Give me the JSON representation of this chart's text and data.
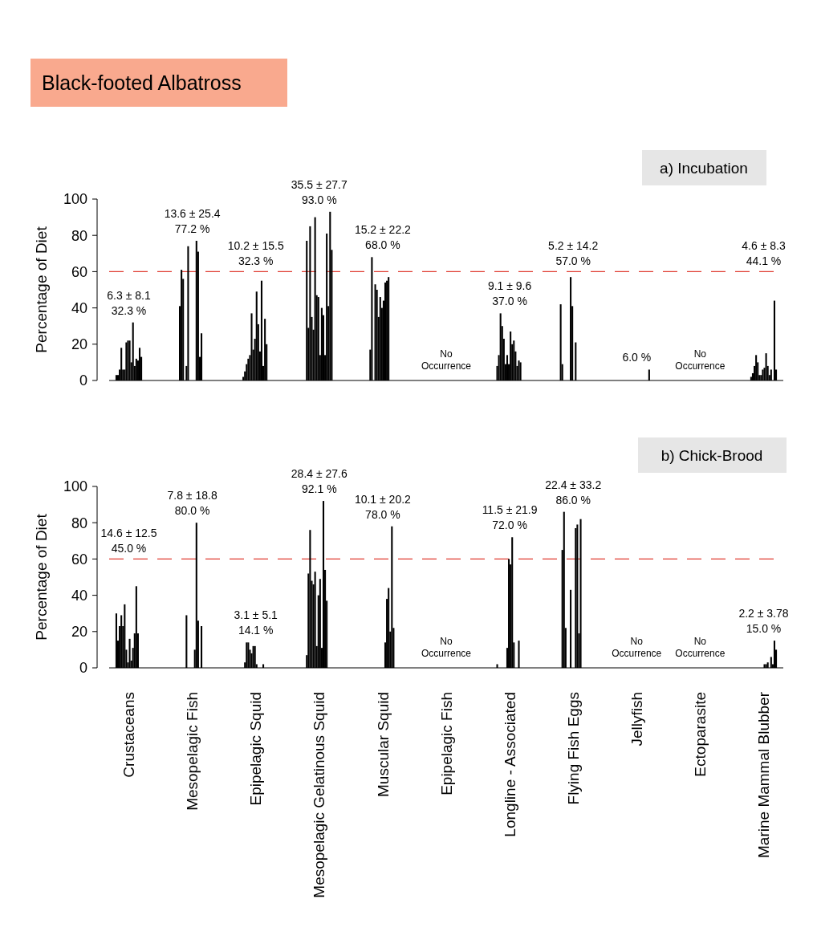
{
  "chart_data": [
    {
      "type": "bar",
      "title": "Black-footed Albatross",
      "subtitle": "a) Incubation",
      "ylabel": "Percentage of Diet",
      "categories": [
        null,
        null,
        null,
        null,
        null,
        null,
        null,
        null,
        null,
        null,
        null
      ],
      "ylim": [
        0,
        100
      ],
      "yticks": [
        0,
        20,
        40,
        60,
        80,
        100
      ],
      "tick_labels": "y",
      "ref_lines": [
        {
          "axis": "y",
          "value": 60,
          "color": "#e03c31",
          "line_style": "dashed"
        }
      ],
      "annotations": [
        "6.3 ± 8.1\n32.3 %",
        "13.6 ± 25.4\n77.2 %",
        "10.2 ± 15.5\n32.3 %",
        "35.5 ± 27.7\n93.0 %",
        "15.2 ± 22.2\n68.0 %",
        "No\nOccurrence",
        "9.1 ± 9.6\n37.0 %",
        "5.2 ± 14.2\n57.0 %",
        "6.0 %",
        "No\nOccurrence",
        "4.6 ± 8.3\n44.1 %"
      ],
      "series": [
        {
          "color": "#000000",
          "values": [
            3,
            41,
            2,
            77,
            17,
            0,
            8,
            42,
            0,
            0,
            2
          ]
        },
        {
          "color": "#000000",
          "values": [
            3,
            61,
            5,
            29,
            68,
            0,
            14,
            9,
            0,
            0,
            4
          ]
        },
        {
          "color": "#000000",
          "values": [
            6,
            56,
            9,
            85,
            0,
            0,
            37,
            0,
            0,
            0,
            8
          ]
        },
        {
          "color": "#000000",
          "values": [
            18,
            0,
            12,
            35,
            53,
            0,
            30,
            0,
            0,
            0,
            14
          ]
        },
        {
          "color": "#000000",
          "values": [
            6,
            8,
            14,
            28,
            50,
            0,
            23,
            0,
            0,
            0,
            10
          ]
        },
        {
          "color": "#000000",
          "values": [
            6,
            74,
            37,
            90,
            35,
            0,
            9,
            0,
            0,
            0,
            3
          ]
        },
        {
          "color": "#000000",
          "values": [
            21,
            0,
            17,
            47,
            46,
            0,
            14,
            57,
            0,
            0,
            3
          ]
        },
        {
          "color": "#000000",
          "values": [
            22,
            0,
            23,
            46,
            40,
            0,
            9,
            41,
            0,
            0,
            6
          ]
        },
        {
          "color": "#000000",
          "values": [
            22,
            0,
            49,
            14,
            44,
            0,
            27,
            0,
            0,
            0,
            7
          ]
        },
        {
          "color": "#000000",
          "values": [
            10,
            0,
            31,
            40,
            54,
            0,
            20,
            21,
            0,
            0,
            15
          ]
        },
        {
          "color": "#000000",
          "values": [
            32,
            77,
            16,
            36,
            55,
            0,
            22,
            0,
            0,
            0,
            8
          ]
        },
        {
          "color": "#000000",
          "values": [
            8,
            71,
            55,
            14,
            57,
            0,
            16,
            0,
            0,
            0,
            3
          ]
        },
        {
          "color": "#000000",
          "values": [
            12,
            13,
            8,
            81,
            0,
            0,
            8,
            0,
            0,
            0,
            6
          ]
        },
        {
          "color": "#000000",
          "values": [
            11,
            26,
            34,
            41,
            0,
            0,
            11,
            0,
            0,
            0,
            0
          ]
        },
        {
          "color": "#000000",
          "values": [
            18,
            0,
            20,
            93,
            0,
            0,
            10,
            0,
            0,
            0,
            44
          ]
        },
        {
          "color": "#000000",
          "values": [
            13,
            0,
            0,
            72,
            0,
            0,
            0,
            0,
            6,
            0,
            6
          ]
        }
      ]
    },
    {
      "type": "bar",
      "subtitle": "b) Chick-Brood",
      "ylabel": "Percentage of Diet",
      "categories": [
        "Crustaceans",
        "Mesopelagic Fish",
        "Epipelagic Squid",
        "Mesopelagic Gelatinous Squid",
        "Muscular Squid",
        "Epipelagic Fish",
        "Longline - Associated",
        "Flying Fish Eggs",
        "Jellyfish",
        "Ectoparasite",
        "Marine Mammal Blubber"
      ],
      "ylim": [
        0,
        100
      ],
      "yticks": [
        0,
        20,
        40,
        60,
        80,
        100
      ],
      "ref_lines": [
        {
          "axis": "y",
          "value": 60,
          "color": "#e03c31",
          "line_style": "dashed"
        }
      ],
      "annotations": [
        "14.6 ± 12.5\n45.0 %",
        "7.8 ± 18.8\n80.0 %",
        "3.1 ± 5.1\n14.1 %",
        "28.4 ± 27.6\n92.1 %",
        "10.1 ± 20.2\n78.0 %",
        "No\nOccurrence",
        "11.5 ± 21.9\n72.0 %",
        "22.4 ± 33.2\n86.0 %",
        "No\nOccurrence",
        "No\nOccurrence",
        "2.2 ± 3.78\n15.0 %"
      ],
      "series": [
        {
          "color": "#000000",
          "values": [
            30,
            0,
            0,
            7,
            0,
            0,
            2,
            0,
            0,
            0,
            0
          ]
        },
        {
          "color": "#000000",
          "values": [
            15,
            0,
            3,
            52,
            0,
            0,
            0,
            65,
            0,
            0,
            0
          ]
        },
        {
          "color": "#000000",
          "values": [
            23,
            0,
            14,
            76,
            0,
            0,
            0,
            86,
            0,
            0,
            0
          ]
        },
        {
          "color": "#000000",
          "values": [
            29,
            0,
            14,
            48,
            0,
            0,
            0,
            22,
            0,
            0,
            0
          ]
        },
        {
          "color": "#000000",
          "values": [
            23,
            29,
            10,
            46,
            0,
            0,
            0,
            0,
            0,
            0,
            0
          ]
        },
        {
          "color": "#000000",
          "values": [
            35,
            0,
            8,
            53,
            0,
            0,
            0,
            0,
            0,
            0,
            0
          ]
        },
        {
          "color": "#000000",
          "values": [
            10,
            0,
            12,
            12,
            0,
            0,
            11,
            43,
            0,
            0,
            0
          ]
        },
        {
          "color": "#000000",
          "values": [
            3,
            0,
            12,
            40,
            0,
            0,
            60,
            0,
            0,
            0,
            0
          ]
        },
        {
          "color": "#000000",
          "values": [
            16,
            0,
            2,
            49,
            0,
            0,
            57,
            0,
            0,
            0,
            2
          ]
        },
        {
          "color": "#000000",
          "values": [
            4,
            10,
            0,
            11,
            14,
            0,
            72,
            77,
            0,
            0,
            2
          ]
        },
        {
          "color": "#000000",
          "values": [
            11,
            80,
            0,
            92,
            38,
            0,
            14,
            79,
            0,
            0,
            3
          ]
        },
        {
          "color": "#000000",
          "values": [
            19,
            26,
            0,
            54,
            44,
            0,
            0,
            19,
            0,
            0,
            0
          ]
        },
        {
          "color": "#000000",
          "values": [
            45,
            0,
            2,
            37,
            20,
            0,
            0,
            82,
            0,
            0,
            6
          ]
        },
        {
          "color": "#000000",
          "values": [
            19,
            23,
            0,
            0,
            78,
            0,
            15,
            0,
            0,
            0,
            2
          ]
        },
        {
          "color": "#000000",
          "values": [
            0,
            0,
            0,
            0,
            22,
            0,
            0,
            0,
            0,
            0,
            15
          ]
        },
        {
          "color": "#000000",
          "values": [
            0,
            0,
            0,
            0,
            0,
            0,
            0,
            0,
            0,
            0,
            10
          ]
        }
      ]
    }
  ]
}
